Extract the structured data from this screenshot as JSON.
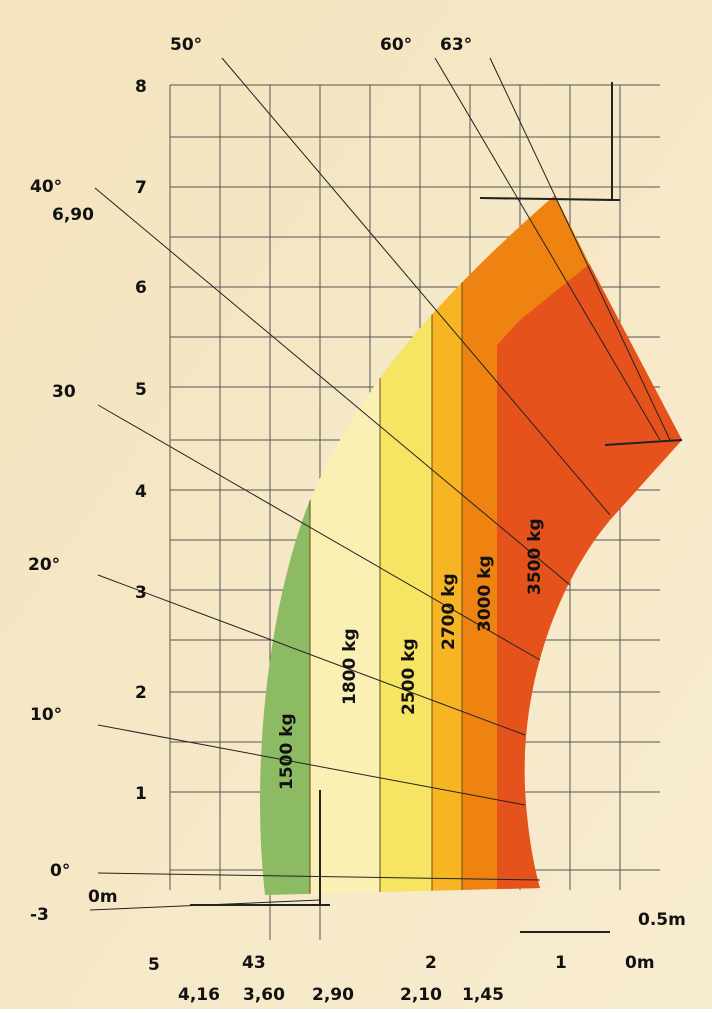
{
  "angles": [
    "50°",
    "60°",
    "63°",
    "40°",
    "30",
    "20°",
    "10°",
    "0°"
  ],
  "max_height": "6,90",
  "origin": {
    "depth": "-3",
    "zero": "0m"
  },
  "y_axis": [
    "8",
    "7",
    "6",
    "5",
    "4",
    "3",
    "2",
    "1"
  ],
  "x_axis": [
    "5",
    "43",
    "2",
    "1",
    "0m"
  ],
  "x_distances": [
    "4,16",
    "3,60",
    "2,90",
    "2,10",
    "1,45"
  ],
  "scale": "0.5m",
  "loads": [
    "1500 kg",
    "1800 kg",
    "2500 kg",
    "2700 kg",
    "3000 kg",
    "3500 kg"
  ]
}
